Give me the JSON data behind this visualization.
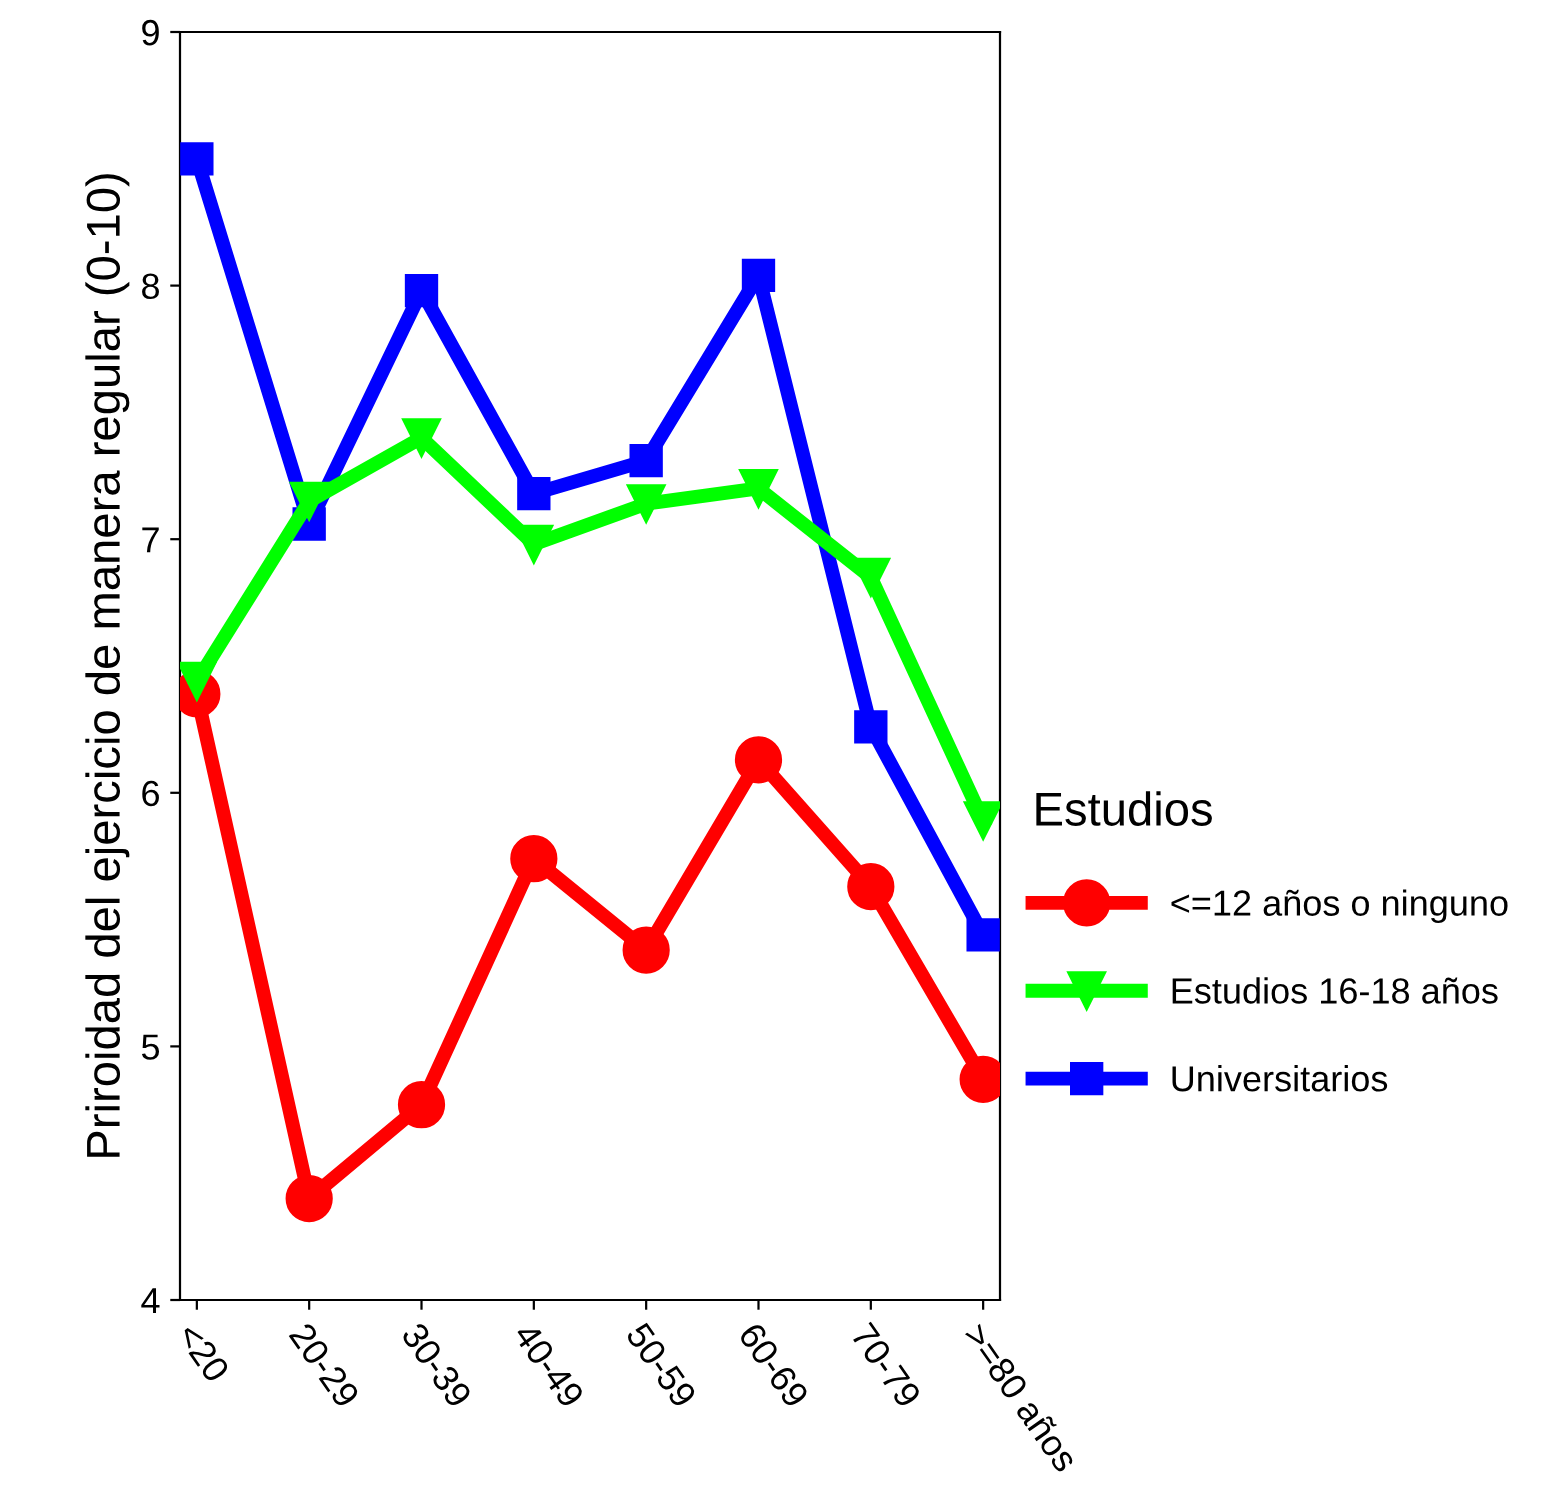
{
  "chart_data": {
    "type": "line",
    "ylabel": "Priroidad del ejercicio de manera regular (0-10)",
    "legend_title": "Estudios",
    "categories": [
      "<20",
      "20-29",
      "30-39",
      "40-49",
      "50-59",
      "60-69",
      "70-79",
      ">=80 años"
    ],
    "series": [
      {
        "name": "<=12 años o ninguno",
        "color": "#ff0000",
        "marker": "circle",
        "values": [
          6.39,
          4.4,
          4.77,
          5.74,
          5.38,
          6.13,
          5.63,
          4.87
        ]
      },
      {
        "name": "Estudios 16-18 años",
        "color": "#00ff00",
        "marker": "triangle",
        "values": [
          6.44,
          7.15,
          7.4,
          6.98,
          7.14,
          7.2,
          6.85,
          5.89
        ]
      },
      {
        "name": "Universitarios",
        "color": "#0000ff",
        "marker": "square",
        "values": [
          8.5,
          7.06,
          7.98,
          7.18,
          7.31,
          8.04,
          6.26,
          5.44
        ]
      }
    ],
    "ylim": [
      4,
      9
    ],
    "yticks": [
      4,
      5,
      6,
      7,
      8,
      9
    ],
    "grid": false,
    "legend": "right",
    "line_style": "solid"
  }
}
